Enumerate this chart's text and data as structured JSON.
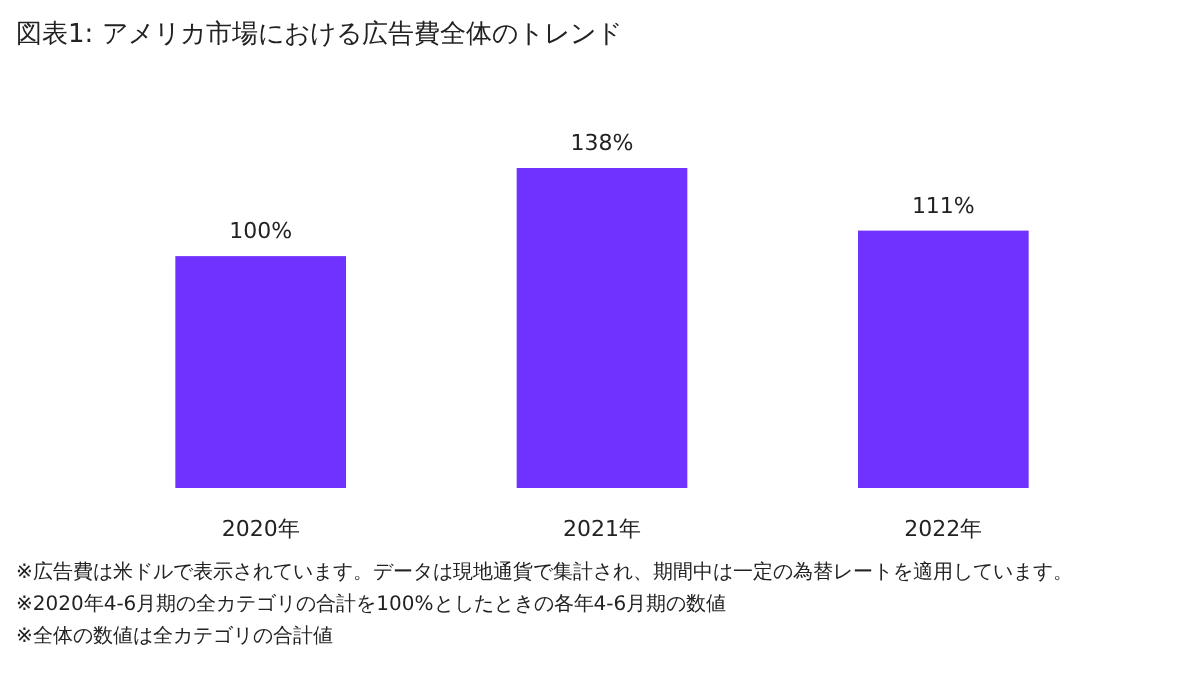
{
  "chart_data": {
    "type": "bar",
    "title": "図表1: アメリカ市場における広告費全体のトレンド",
    "categories": [
      "2020年",
      "2021年",
      "2022年"
    ],
    "series": [
      {
        "color": "#7033ff",
        "values": [
          100,
          138,
          111
        ],
        "value_labels": [
          "100%",
          "138%",
          "111%"
        ]
      }
    ],
    "annotations": [
      "※広告費は米ドルで表示されています。データは現地通貨で集計され、期間中は一定の為替レートを適用しています。",
      "※2020年4-6月期の全カテゴリの合計を100%としたときの各年4-6月期の数値",
      "※全体の数値は全カテゴリの合計値"
    ]
  }
}
